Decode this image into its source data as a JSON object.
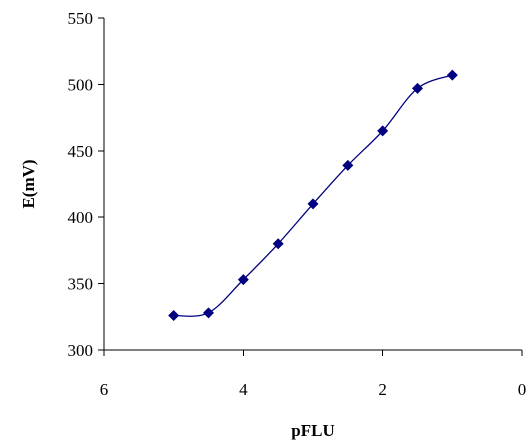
{
  "chart_data": {
    "type": "line",
    "title": "",
    "xlabel": "pFLU",
    "ylabel": "E(mV)",
    "xlim": [
      6,
      0
    ],
    "ylim": [
      300,
      550
    ],
    "x_reversed": true,
    "x_ticks": [
      6,
      4,
      2,
      0
    ],
    "y_ticks": [
      300,
      350,
      400,
      450,
      500,
      550
    ],
    "grid": false,
    "legend": "none",
    "smoothed": true,
    "series": [
      {
        "color": "#000080",
        "marker": "diamond",
        "x": [
          5,
          4.5,
          4,
          3.5,
          3,
          2.5,
          2,
          1.5,
          1
        ],
        "y": [
          326,
          328,
          353,
          380,
          410,
          439,
          465,
          497,
          507
        ]
      }
    ]
  }
}
